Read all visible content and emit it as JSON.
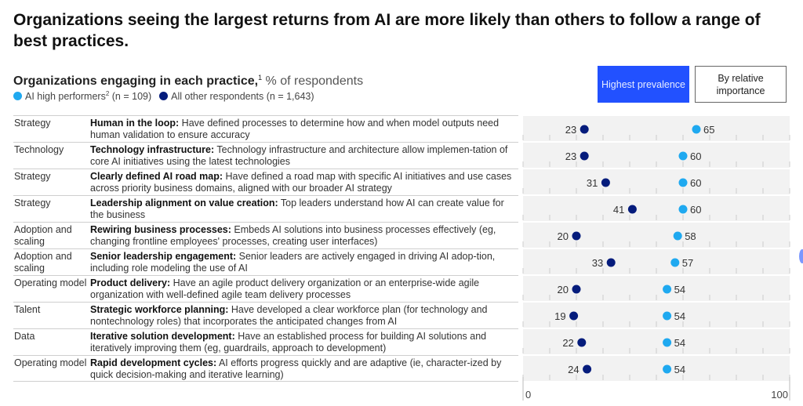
{
  "header": {
    "title": "Organizations seeing the largest returns from AI are more likely than others to follow a range of best practices.",
    "subtitle_bold": "Organizations engaging in each practice,",
    "subtitle_footnote": "1",
    "subtitle_unit": " % of respondents"
  },
  "legend": {
    "high_label": "AI high performers",
    "high_footnote": "2",
    "high_n": " (n = 109)",
    "other_label": "All other respondents (n = 1,643)"
  },
  "toggles": {
    "active": "Highest prevalence",
    "inactive": "By relative importance"
  },
  "colors": {
    "high_performers": "#1fa9f0",
    "other_respondents": "#051c7c",
    "active_button": "#2251ff",
    "row_band": "#f2f2f2"
  },
  "rows": [
    {
      "category": "Strategy",
      "title": "Human in the loop:",
      "text": " Have defined processes to determine how and when model outputs need human validation to ensure accuracy"
    },
    {
      "category": "Technology",
      "title": "Technology infrastructure:",
      "text": " Technology infrastructure and architecture allow implemen-tation of core AI initiatives using the latest technologies"
    },
    {
      "category": "Strategy",
      "title": "Clearly defined AI road map:",
      "text": " Have defined a road map with specific AI initiatives and use cases across priority business domains, aligned with our broader AI strategy"
    },
    {
      "category": "Strategy",
      "title": "Leadership alignment on value creation:",
      "text": " Top leaders understand how AI can create value for the business"
    },
    {
      "category": "Adoption and scaling",
      "title": "Rewiring business processes:",
      "text": " Embeds AI solutions into business processes effectively (eg, changing frontline employees' processes, creating user interfaces)"
    },
    {
      "category": "Adoption and scaling",
      "title": "Senior leadership engagement:",
      "text": " Senior leaders are actively engaged in driving AI adop-tion, including role modeling the use of AI"
    },
    {
      "category": "Operating model",
      "title": "Product delivery:",
      "text": " Have an agile product delivery organization or an enterprise-wide agile organization with well-defined agile team delivery processes"
    },
    {
      "category": "Talent",
      "title": "Strategic workforce planning:",
      "text": " Have developed a clear workforce plan (for technology and nontechnology roles) that incorporates the anticipated changes from AI"
    },
    {
      "category": "Data",
      "title": "Iterative solution development:",
      "text": " Have an established process for building AI solutions and iteratively improving them (eg, guardrails, approach to development)"
    },
    {
      "category": "Operating model",
      "title": "Rapid development cycles:",
      "text": " AI efforts progress quickly and are adaptive (ie, character-ized by quick decision-making and iterative learning)"
    }
  ],
  "chart_data": {
    "type": "scatter",
    "title": "Organizations engaging in each practice, % of respondents",
    "categories": [
      "Human in the loop",
      "Technology infrastructure",
      "Clearly defined AI road map",
      "Leadership alignment on value creation",
      "Rewiring business processes",
      "Senior leadership engagement",
      "Product delivery",
      "Strategic workforce planning",
      "Iterative solution development",
      "Rapid development cycles"
    ],
    "series": [
      {
        "name": "AI high performers (n = 109)",
        "values": [
          65,
          60,
          60,
          60,
          58,
          57,
          54,
          54,
          54,
          54
        ]
      },
      {
        "name": "All other respondents (n = 1,643)",
        "values": [
          23,
          23,
          31,
          41,
          20,
          33,
          20,
          19,
          22,
          24
        ]
      }
    ],
    "xlim": [
      0,
      100
    ],
    "xticks": [
      0,
      10,
      20,
      30,
      40,
      50,
      60,
      70,
      80,
      90,
      100
    ],
    "xtick_labels": [
      "0",
      "100"
    ],
    "grid": true,
    "legend": "top-left"
  }
}
